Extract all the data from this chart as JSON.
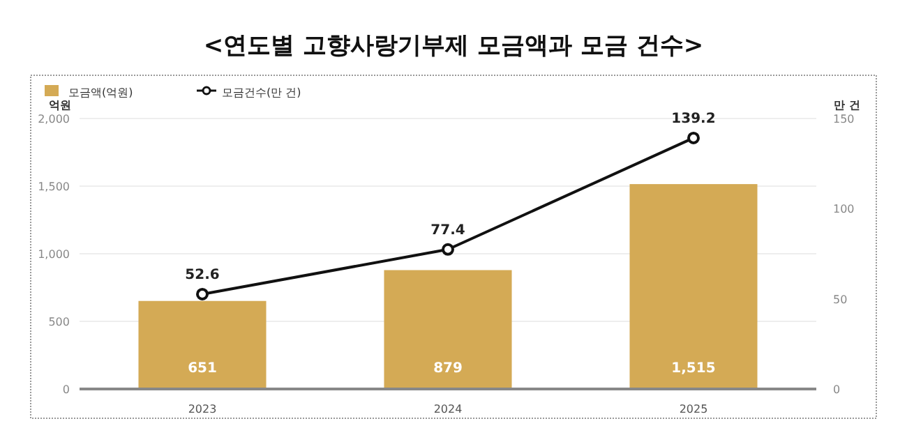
{
  "chart_data": {
    "type": "bar",
    "title": "<연도별 고향사랑기부제 모금액과 모금 건수>",
    "categories": [
      "2023",
      "2024",
      "2025"
    ],
    "ylabel": "억원",
    "y2label": "만 건",
    "ylim": [
      0,
      2000
    ],
    "yticks": [
      0,
      {
        "value": 500,
        "label": "500"
      },
      {
        "value": 1000,
        "label": "1,000"
      },
      {
        "value": 1500,
        "label": "1,500"
      },
      {
        "value": 2000,
        "label": "2,000"
      }
    ],
    "y2lim": [
      0,
      150
    ],
    "y2ticks": [
      0,
      50,
      100,
      150
    ],
    "grid": "y",
    "legend": "top left",
    "marker": "circle",
    "series": [
      {
        "name": "모금액(억원)",
        "color": "#d4aa55",
        "values": [
          651,
          879,
          1515
        ],
        "value_labels": [
          "651",
          "879",
          "1,515"
        ]
      },
      {
        "name": "모금건수(만 건)",
        "type": "line",
        "axis": "y2",
        "color": "#111111",
        "values": [
          52.6,
          77.4,
          139.2
        ],
        "value_labels": [
          "52.6",
          "77.4",
          "139.2"
        ]
      }
    ]
  }
}
